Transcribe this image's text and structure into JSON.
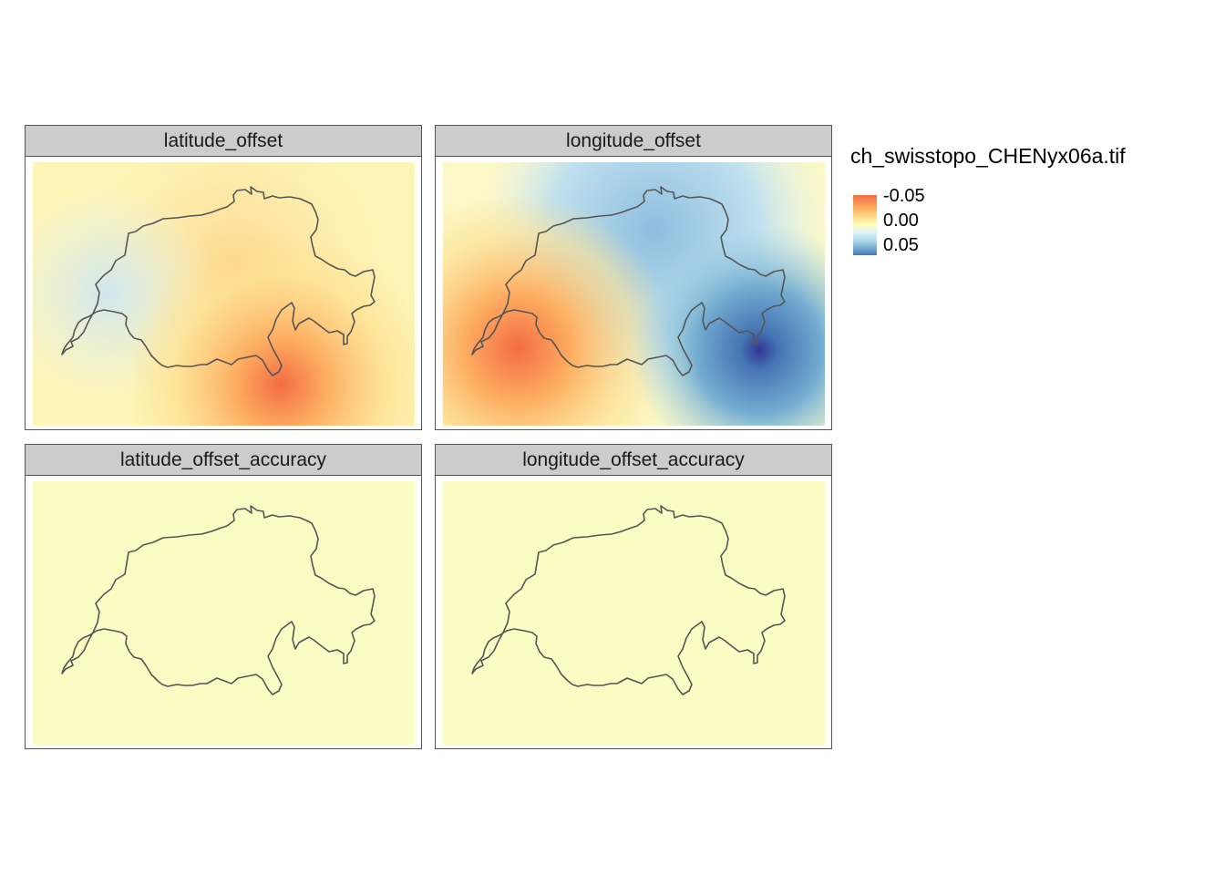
{
  "facets": [
    {
      "key": "lat",
      "title": "latitude_offset"
    },
    {
      "key": "lon",
      "title": "longitude_offset"
    },
    {
      "key": "latacc",
      "title": "latitude_offset_accuracy"
    },
    {
      "key": "lonacc",
      "title": "longitude_offset_accuracy"
    }
  ],
  "legend": {
    "title": "ch_swisstopo_CHENyx06a.tif",
    "labels": [
      "-0.05",
      "0.00",
      "0.05"
    ],
    "palette": [
      "#f46d43",
      "#fdae61",
      "#fee090",
      "#ffffbf",
      "#e0f3f8",
      "#abd9e9",
      "#74add1",
      "#4575b4"
    ]
  },
  "colors": {
    "neutral": "#fbfcc4",
    "outline": "#555555",
    "strip": "#cccccc"
  }
}
